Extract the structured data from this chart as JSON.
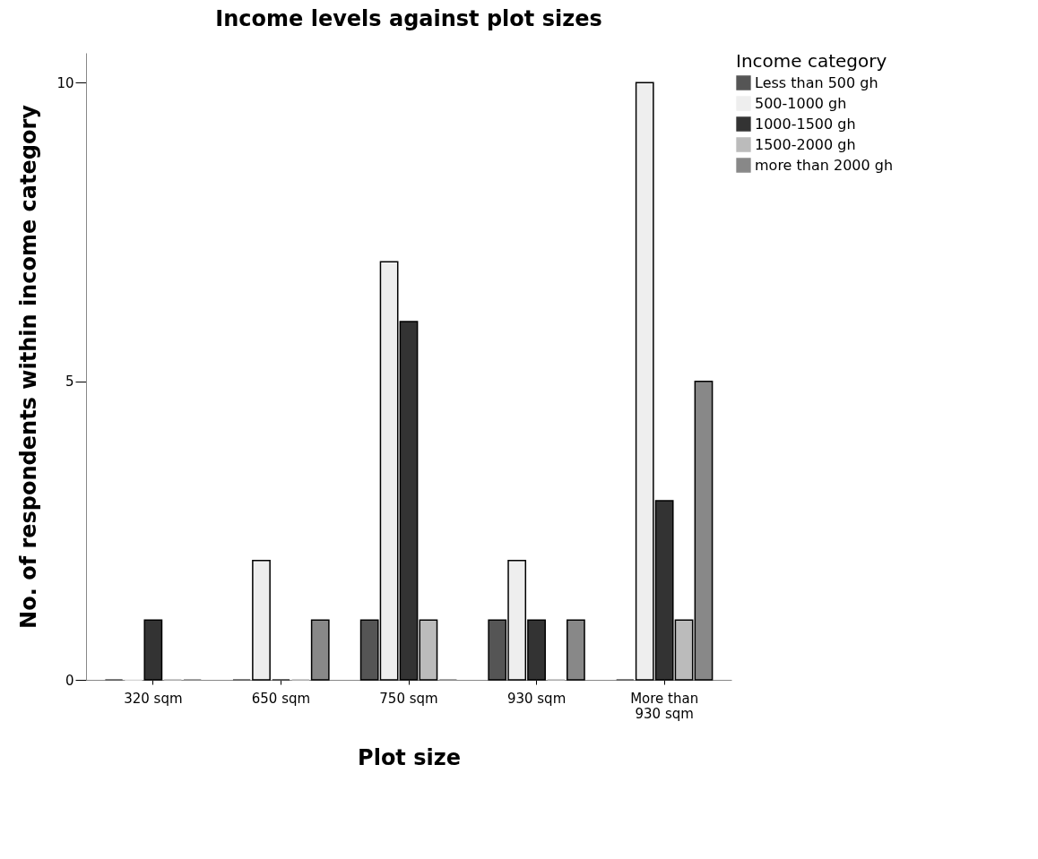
{
  "chart_data": {
    "type": "bar",
    "title": "Income levels against plot sizes",
    "xlabel": "Plot size",
    "ylabel": "No. of respondents within income category",
    "legend_title": "Income category",
    "categories": [
      "320 sqm",
      "650 sqm",
      "750 sqm",
      "930 sqm",
      "More than 930 sqm"
    ],
    "series": [
      {
        "name": "Less than 500 gh",
        "color": "#555555",
        "values": [
          0,
          0,
          1,
          1,
          0
        ]
      },
      {
        "name": "500-1000 gh",
        "color": "#eeeeee",
        "values": [
          0,
          2,
          7,
          2,
          10
        ]
      },
      {
        "name": "1000-1500 gh",
        "color": "#333333",
        "values": [
          1,
          0,
          6,
          1,
          3
        ]
      },
      {
        "name": "1500-2000 gh",
        "color": "#bbbbbb",
        "values": [
          0,
          0,
          1,
          0,
          1
        ]
      },
      {
        "name": "more than 2000 gh",
        "color": "#888888",
        "values": [
          0,
          1,
          0,
          1,
          5
        ]
      }
    ],
    "ylim": [
      0,
      10.5
    ],
    "yticks": [
      0,
      5,
      10
    ],
    "grid": false,
    "legend": "top right"
  }
}
